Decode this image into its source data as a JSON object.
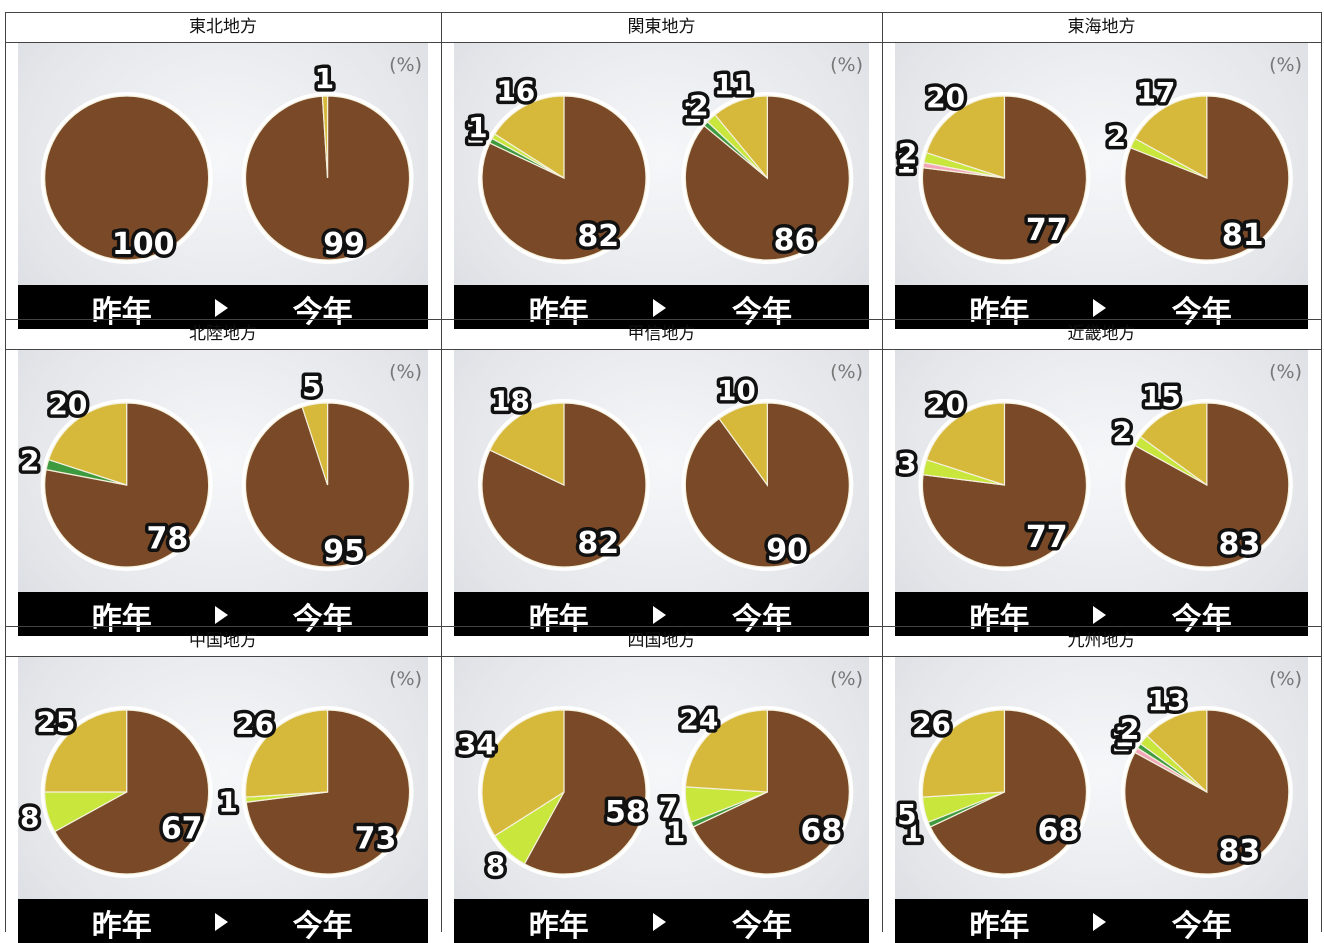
{
  "header_row_label": "",
  "unit_label": "(%)",
  "bar": {
    "last_year": "昨年",
    "this_year": "今年"
  },
  "colors": {
    "brown": "#7a4a28",
    "yellow": "#d6b83a",
    "lime": "#c8e63c",
    "green": "#3e9a3e",
    "pink": "#f2a6b8"
  },
  "chart_data": [
    {
      "type": "pie",
      "title": "東北地方",
      "pies": [
        {
          "name": "昨年",
          "values": [
            100
          ],
          "colors": [
            "brown"
          ],
          "labels": [
            "100"
          ]
        },
        {
          "name": "今年",
          "values": [
            99,
            1
          ],
          "colors": [
            "brown",
            "yellow"
          ],
          "labels": [
            "99",
            "1"
          ]
        }
      ]
    },
    {
      "type": "pie",
      "title": "関東地方",
      "pies": [
        {
          "name": "昨年",
          "values": [
            82,
            16,
            1,
            1
          ],
          "colors": [
            "brown",
            "yellow",
            "lime",
            "green"
          ],
          "labels": [
            "82",
            "16",
            "1",
            "1"
          ]
        },
        {
          "name": "今年",
          "values": [
            86,
            11,
            2,
            1
          ],
          "colors": [
            "brown",
            "yellow",
            "lime",
            "green"
          ],
          "labels": [
            "86",
            "11",
            "2",
            "1"
          ]
        }
      ]
    },
    {
      "type": "pie",
      "title": "東海地方",
      "pies": [
        {
          "name": "昨年",
          "values": [
            77,
            20,
            2,
            1
          ],
          "colors": [
            "brown",
            "yellow",
            "lime",
            "pink"
          ],
          "labels": [
            "77",
            "20",
            "2",
            "1"
          ]
        },
        {
          "name": "今年",
          "values": [
            81,
            17,
            2
          ],
          "colors": [
            "brown",
            "yellow",
            "lime"
          ],
          "labels": [
            "81",
            "17",
            "2"
          ]
        }
      ]
    },
    {
      "type": "pie",
      "title": "北陸地方",
      "pies": [
        {
          "name": "昨年",
          "values": [
            78,
            20,
            2
          ],
          "colors": [
            "brown",
            "yellow",
            "green"
          ],
          "labels": [
            "78",
            "20",
            "2"
          ]
        },
        {
          "name": "今年",
          "values": [
            95,
            5
          ],
          "colors": [
            "brown",
            "yellow"
          ],
          "labels": [
            "95",
            "5"
          ]
        }
      ]
    },
    {
      "type": "pie",
      "title": "甲信地方",
      "pies": [
        {
          "name": "昨年",
          "values": [
            82,
            18
          ],
          "colors": [
            "brown",
            "yellow"
          ],
          "labels": [
            "82",
            "18"
          ]
        },
        {
          "name": "今年",
          "values": [
            90,
            10
          ],
          "colors": [
            "brown",
            "yellow"
          ],
          "labels": [
            "90",
            "10"
          ]
        }
      ]
    },
    {
      "type": "pie",
      "title": "近畿地方",
      "pies": [
        {
          "name": "昨年",
          "values": [
            77,
            20,
            3
          ],
          "colors": [
            "brown",
            "yellow",
            "lime"
          ],
          "labels": [
            "77",
            "20",
            "3"
          ]
        },
        {
          "name": "今年",
          "values": [
            83,
            15,
            2
          ],
          "colors": [
            "brown",
            "yellow",
            "lime"
          ],
          "labels": [
            "83",
            "15",
            "2"
          ]
        }
      ]
    },
    {
      "type": "pie",
      "title": "中国地方",
      "pies": [
        {
          "name": "昨年",
          "values": [
            67,
            25,
            8
          ],
          "colors": [
            "brown",
            "yellow",
            "lime"
          ],
          "labels": [
            "67",
            "25",
            "8"
          ]
        },
        {
          "name": "今年",
          "values": [
            73,
            26,
            1
          ],
          "colors": [
            "brown",
            "yellow",
            "lime"
          ],
          "labels": [
            "73",
            "26",
            "1"
          ]
        }
      ]
    },
    {
      "type": "pie",
      "title": "四国地方",
      "pies": [
        {
          "name": "昨年",
          "values": [
            58,
            34,
            8
          ],
          "colors": [
            "brown",
            "yellow",
            "lime"
          ],
          "labels": [
            "58",
            "34",
            "8"
          ]
        },
        {
          "name": "今年",
          "values": [
            68,
            24,
            7,
            1
          ],
          "colors": [
            "brown",
            "yellow",
            "lime",
            "green"
          ],
          "labels": [
            "68",
            "24",
            "7",
            "1"
          ]
        }
      ]
    },
    {
      "type": "pie",
      "title": "九州地方",
      "pies": [
        {
          "name": "昨年",
          "values": [
            68,
            26,
            5,
            1
          ],
          "colors": [
            "brown",
            "yellow",
            "lime",
            "green"
          ],
          "labels": [
            "68",
            "26",
            "5",
            "1"
          ]
        },
        {
          "name": "今年",
          "values": [
            83,
            13,
            2,
            1,
            1
          ],
          "colors": [
            "brown",
            "yellow",
            "lime",
            "green",
            "pink"
          ],
          "labels": [
            "83",
            "13",
            "2",
            "1",
            "1"
          ]
        }
      ]
    }
  ]
}
